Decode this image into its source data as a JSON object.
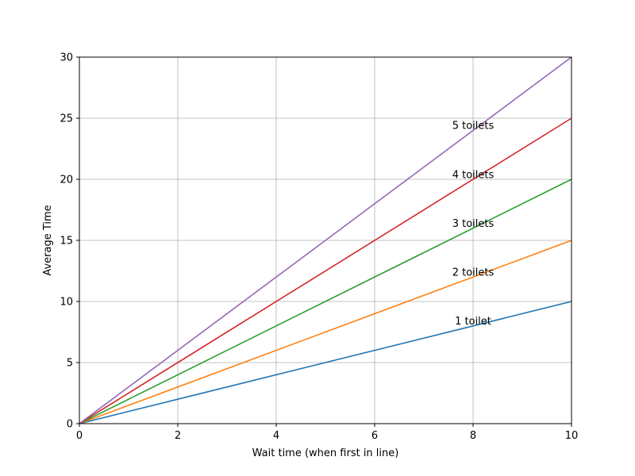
{
  "chart_data": {
    "type": "line",
    "title": "",
    "xlabel": "Wait time (when first in line)",
    "ylabel": "Average Time",
    "xlim": [
      0,
      10
    ],
    "ylim": [
      0,
      30
    ],
    "xticks": [
      0,
      2,
      4,
      6,
      8,
      10
    ],
    "yticks": [
      0,
      5,
      10,
      15,
      20,
      25,
      30
    ],
    "grid": true,
    "legend": "none",
    "x": [
      0,
      10
    ],
    "series": [
      {
        "values": [
          0,
          10
        ],
        "color": "#1f77b4"
      },
      {
        "values": [
          0,
          15
        ],
        "color": "#ff7f0e"
      },
      {
        "values": [
          0,
          20
        ],
        "color": "#2ca02c"
      },
      {
        "values": [
          0,
          25
        ],
        "color": "#d62728"
      },
      {
        "values": [
          0,
          30
        ],
        "color": "#9467bd"
      }
    ],
    "annotations": [
      {
        "text": "1 toilet",
        "x": 8.0,
        "y": 8.4
      },
      {
        "text": "2 toilets",
        "x": 8.0,
        "y": 12.4
      },
      {
        "text": "3 toilets",
        "x": 8.0,
        "y": 16.4
      },
      {
        "text": "4 toilets",
        "x": 8.0,
        "y": 20.4
      },
      {
        "text": "5 toilets",
        "x": 8.0,
        "y": 24.4
      }
    ]
  }
}
